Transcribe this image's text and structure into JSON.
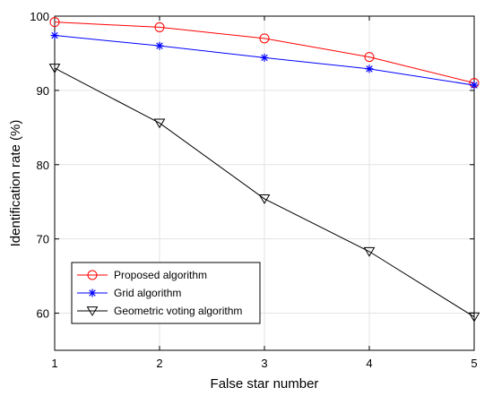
{
  "chart_data": {
    "type": "line",
    "x": [
      1,
      2,
      3,
      4,
      5
    ],
    "xlabel": "False star number",
    "ylabel": "Identification rate (%)",
    "xlim": [
      1,
      5
    ],
    "ylim": [
      55,
      100
    ],
    "xticks": [
      1,
      2,
      3,
      4,
      5
    ],
    "yticks": [
      60,
      70,
      80,
      90,
      100
    ],
    "grid": true,
    "legend_position": "bottom-left",
    "series": [
      {
        "name": "Proposed algorithm",
        "values": [
          99.2,
          98.5,
          97.0,
          94.5,
          91.0
        ],
        "color": "#ff0000",
        "marker": "circle"
      },
      {
        "name": "Grid algorithm",
        "values": [
          97.4,
          96.0,
          94.4,
          92.9,
          90.7
        ],
        "color": "#0000ff",
        "marker": "asterisk"
      },
      {
        "name": "Geometric voting algorithm",
        "values": [
          93.0,
          85.6,
          75.4,
          68.3,
          59.5
        ],
        "color": "#000000",
        "marker": "triangle-down"
      }
    ]
  }
}
